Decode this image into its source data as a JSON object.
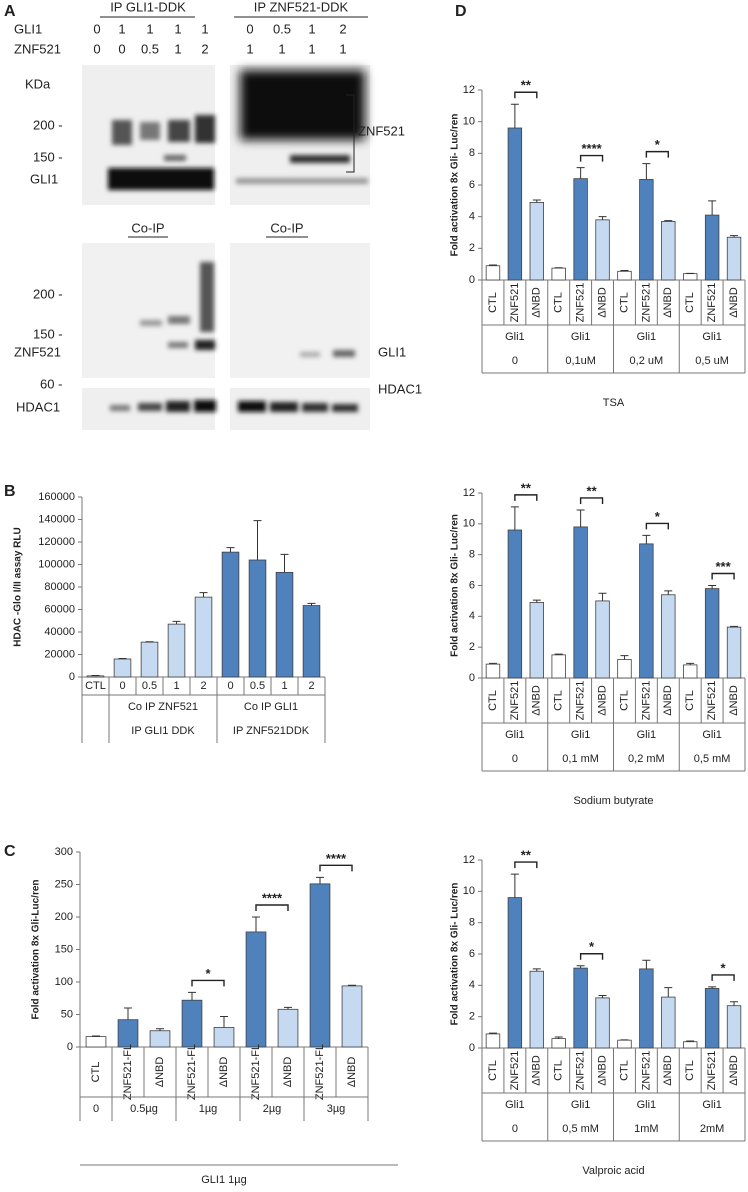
{
  "blot": {
    "panel": "A",
    "ip": [
      "IP GLI1-DDK",
      "IP ZNF521-DDK"
    ],
    "lanes": [
      {
        "label": "GLI1",
        "left": [
          "0",
          "1",
          "1",
          "1",
          "1"
        ],
        "right": [
          "0",
          "0.5",
          "1",
          "2"
        ]
      },
      {
        "label": "ZNF521",
        "left": [
          "0",
          "0",
          "0.5",
          "1",
          "2"
        ],
        "right": [
          "1",
          "1",
          "1",
          "1"
        ]
      }
    ],
    "kda": "KDa",
    "top_markers": [
      "200 -",
      "150 -"
    ],
    "top_band": "GLI1",
    "top_bracket": "ZNF521",
    "coip": [
      "Co-IP",
      "Co-IP"
    ],
    "mid_markers": [
      "200 -",
      "150 -"
    ],
    "mid_band": "ZNF521",
    "mid_right": "GLI1",
    "bottom_marker": "60 -",
    "bottom_band": "HDAC1",
    "bottom_right": "HDAC1"
  },
  "chart_data": [
    {
      "type": "bar",
      "panel": "B",
      "ylabel": "HDAC -Glo I/II assay RLU",
      "ylim": [
        0,
        160000
      ],
      "yticks": [
        0,
        20000,
        40000,
        60000,
        80000,
        100000,
        120000,
        140000,
        160000
      ],
      "groups": [
        {
          "categories": [
            "CTL"
          ],
          "values": [
            1000
          ],
          "errors": [
            300
          ],
          "colors": [
            "#ffffff"
          ],
          "rows": []
        },
        {
          "categories": [
            "0",
            "0.5",
            "1",
            "2"
          ],
          "values": [
            16000,
            31000,
            47000,
            71000
          ],
          "errors": [
            500,
            300,
            2500,
            4000
          ],
          "colors": [
            "#c5d9f1",
            "#c5d9f1",
            "#c5d9f1",
            "#c5d9f1"
          ],
          "rows": [
            "Co IP ZNF521",
            "IP GLI1 DDK"
          ]
        },
        {
          "categories": [
            "0",
            "0.5",
            "1",
            "2"
          ],
          "values": [
            111000,
            104000,
            93000,
            63500
          ],
          "errors": [
            4000,
            35000,
            16000,
            2000
          ],
          "colors": [
            "#4f81bd",
            "#4f81bd",
            "#4f81bd",
            "#4f81bd"
          ],
          "rows": [
            "Co IP GLI1",
            "IP ZNF521DDK"
          ]
        }
      ]
    },
    {
      "type": "bar",
      "panel": "C",
      "ylabel": "Fold activation 8x Gli-Luc/ren",
      "ylim": [
        0,
        300
      ],
      "yticks": [
        0,
        50,
        100,
        150,
        200,
        250,
        300
      ],
      "footer": "GLI1 1µg",
      "groups": [
        {
          "categories": [
            "CTL"
          ],
          "values": [
            16
          ],
          "errors": [
            1
          ],
          "colors": [
            "#ffffff"
          ],
          "rows": [
            "0"
          ]
        },
        {
          "categories": [
            "ZNF521-FL",
            "ΔNBD"
          ],
          "values": [
            42,
            25
          ],
          "errors": [
            18,
            3
          ],
          "colors": [
            "#4f81bd",
            "#c5d9f1"
          ],
          "rows": [
            "0.5µg"
          ]
        },
        {
          "categories": [
            "ZNF521-FL",
            "ΔNBD"
          ],
          "values": [
            72,
            30
          ],
          "errors": [
            12,
            17
          ],
          "colors": [
            "#4f81bd",
            "#c5d9f1"
          ],
          "rows": [
            "1µg"
          ],
          "significance": "*"
        },
        {
          "categories": [
            "ZNF521-FL",
            "ΔNBD"
          ],
          "values": [
            177,
            58
          ],
          "errors": [
            23,
            3
          ],
          "colors": [
            "#4f81bd",
            "#c5d9f1"
          ],
          "rows": [
            "2µg"
          ],
          "significance": "****"
        },
        {
          "categories": [
            "ZNF521-FL",
            "ΔNBD"
          ],
          "values": [
            251,
            94
          ],
          "errors": [
            10,
            1
          ],
          "colors": [
            "#4f81bd",
            "#c5d9f1"
          ],
          "rows": [
            "3µg"
          ],
          "significance": "****"
        }
      ]
    },
    {
      "type": "bar",
      "panel": "D",
      "ylabel": "Fold activation 8x Gli- Luc/ren",
      "ylim": [
        0,
        12
      ],
      "yticks": [
        0,
        2,
        4,
        6,
        8,
        10,
        12
      ],
      "footer": "TSA",
      "groups": [
        {
          "categories": [
            "CTL",
            "ZNF521",
            "ΔNBD"
          ],
          "values": [
            0.9,
            9.6,
            4.9
          ],
          "errors": [
            0.05,
            1.5,
            0.15
          ],
          "colors": [
            "#ffffff",
            "#4f81bd",
            "#c5d9f1"
          ],
          "rows": [
            "Gli1",
            "0"
          ],
          "significance": "**"
        },
        {
          "categories": [
            "CTL",
            "ZNF521",
            "ΔNBD"
          ],
          "values": [
            0.75,
            6.4,
            3.8
          ],
          "errors": [
            0.02,
            0.7,
            0.2
          ],
          "colors": [
            "#ffffff",
            "#4f81bd",
            "#c5d9f1"
          ],
          "rows": [
            "Gli1",
            "0,1uM"
          ],
          "significance": "****"
        },
        {
          "categories": [
            "CTL",
            "ZNF521",
            "ΔNBD"
          ],
          "values": [
            0.55,
            6.35,
            3.7
          ],
          "errors": [
            0.05,
            1.0,
            0.05
          ],
          "colors": [
            "#ffffff",
            "#4f81bd",
            "#c5d9f1"
          ],
          "rows": [
            "Gli1",
            "0,2 uM"
          ],
          "significance": "*"
        },
        {
          "categories": [
            "CTL",
            "ZNF521",
            "ΔNBD"
          ],
          "values": [
            0.4,
            4.1,
            2.7
          ],
          "errors": [
            0.02,
            0.9,
            0.1
          ],
          "colors": [
            "#ffffff",
            "#4f81bd",
            "#c5d9f1"
          ],
          "rows": [
            "Gli1",
            "0,5 uM"
          ]
        }
      ]
    },
    {
      "type": "bar",
      "ylabel": "Fold activation 8x Gli- Luc/ren",
      "ylim": [
        0,
        12
      ],
      "yticks": [
        0,
        2,
        4,
        6,
        8,
        10,
        12
      ],
      "footer": "Sodium butyrate",
      "groups": [
        {
          "categories": [
            "CTL",
            "ZNF521",
            "ΔNBD"
          ],
          "values": [
            0.9,
            9.6,
            4.9
          ],
          "errors": [
            0.05,
            1.5,
            0.15
          ],
          "colors": [
            "#ffffff",
            "#4f81bd",
            "#c5d9f1"
          ],
          "rows": [
            "Gli1",
            "0"
          ],
          "significance": "**"
        },
        {
          "categories": [
            "CTL",
            "ZNF521",
            "ΔNBD"
          ],
          "values": [
            1.5,
            9.8,
            5.0
          ],
          "errors": [
            0.05,
            1.1,
            0.5
          ],
          "colors": [
            "#ffffff",
            "#4f81bd",
            "#c5d9f1"
          ],
          "rows": [
            "Gli1",
            "0,1 mM"
          ],
          "significance": "**"
        },
        {
          "categories": [
            "CTL",
            "ZNF521",
            "ΔNBD"
          ],
          "values": [
            1.2,
            8.7,
            5.4
          ],
          "errors": [
            0.25,
            0.55,
            0.25
          ],
          "colors": [
            "#ffffff",
            "#4f81bd",
            "#c5d9f1"
          ],
          "rows": [
            "Gli1",
            "0,2 mM"
          ],
          "significance": "*"
        },
        {
          "categories": [
            "CTL",
            "ZNF521",
            "ΔNBD"
          ],
          "values": [
            0.85,
            5.8,
            3.3
          ],
          "errors": [
            0.1,
            0.2,
            0.05
          ],
          "colors": [
            "#ffffff",
            "#4f81bd",
            "#c5d9f1"
          ],
          "rows": [
            "Gli1",
            "0,5 mM"
          ],
          "significance": "***"
        }
      ]
    },
    {
      "type": "bar",
      "ylabel": "Fold activation 8x Gli- Luc/ren",
      "ylim": [
        0,
        12
      ],
      "yticks": [
        0,
        2,
        4,
        6,
        8,
        10,
        12
      ],
      "footer": "Valproic acid",
      "groups": [
        {
          "categories": [
            "CTL",
            "ZNF521",
            "ΔNBD"
          ],
          "values": [
            0.9,
            9.6,
            4.9
          ],
          "errors": [
            0.05,
            1.5,
            0.15
          ],
          "colors": [
            "#ffffff",
            "#4f81bd",
            "#c5d9f1"
          ],
          "rows": [
            "Gli1",
            "0"
          ],
          "significance": "**"
        },
        {
          "categories": [
            "CTL",
            "ZNF521",
            "ΔNBD"
          ],
          "values": [
            0.6,
            5.1,
            3.2
          ],
          "errors": [
            0.1,
            0.15,
            0.15
          ],
          "colors": [
            "#ffffff",
            "#4f81bd",
            "#c5d9f1"
          ],
          "rows": [
            "Gli1",
            "0,5 mM"
          ],
          "significance": "*"
        },
        {
          "categories": [
            "CTL",
            "ZNF521",
            "ΔNBD"
          ],
          "values": [
            0.5,
            5.05,
            3.25
          ],
          "errors": [
            0.02,
            0.55,
            0.6
          ],
          "colors": [
            "#ffffff",
            "#4f81bd",
            "#c5d9f1"
          ],
          "rows": [
            "Gli1",
            "1mM"
          ]
        },
        {
          "categories": [
            "CTL",
            "ZNF521",
            "ΔNBD"
          ],
          "values": [
            0.4,
            3.8,
            2.7
          ],
          "errors": [
            0.05,
            0.1,
            0.25
          ],
          "colors": [
            "#ffffff",
            "#4f81bd",
            "#c5d9f1"
          ],
          "rows": [
            "Gli1",
            "2mM"
          ],
          "significance": "*"
        }
      ]
    }
  ]
}
